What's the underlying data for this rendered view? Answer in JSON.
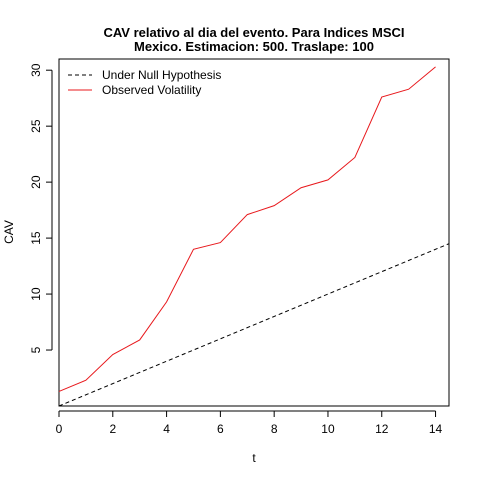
{
  "chart_data": {
    "type": "line",
    "title": "CAV relativo al dia del evento. Para Indices MSCI\nMexico. Estimacion: 500. Traslape: 100",
    "title_lines": [
      "CAV relativo al dia del evento. Para Indices MSCI",
      "Mexico. Estimacion: 500. Traslape: 100"
    ],
    "xlabel": "t",
    "ylabel": "CAV",
    "xlim": [
      0,
      14.5
    ],
    "ylim": [
      0,
      31
    ],
    "xticks": [
      0,
      2,
      4,
      6,
      8,
      10,
      12,
      14
    ],
    "yticks": [
      5,
      10,
      15,
      20,
      25,
      30
    ],
    "grid": false,
    "legend_position": "top-left",
    "series": [
      {
        "name": "Under Null Hypothesis",
        "color": "#000000",
        "style": "dashed",
        "x": [
          0,
          14.5
        ],
        "y": [
          0,
          14.5
        ]
      },
      {
        "name": "Observed Volatility",
        "color": "#e8181c",
        "style": "solid",
        "x": [
          0,
          1,
          2,
          3,
          4,
          5,
          6,
          7,
          8,
          9,
          10,
          11,
          12,
          13,
          14
        ],
        "y": [
          1.3,
          2.3,
          4.6,
          5.9,
          9.3,
          14.0,
          14.6,
          17.1,
          17.9,
          19.5,
          20.2,
          22.2,
          27.6,
          28.3,
          30.3
        ]
      }
    ]
  }
}
